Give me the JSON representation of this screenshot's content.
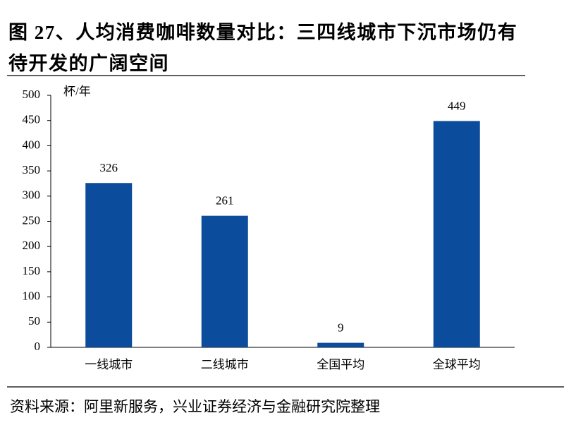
{
  "chart_data": {
    "type": "bar",
    "title": "图 27、人均消费咖啡数量对比：三四线城市下沉市场仍有待开发的广阔空间",
    "y_unit": "杯/年",
    "categories": [
      "一线城市",
      "二线城市",
      "全国平均",
      "全球平均"
    ],
    "values": [
      326,
      261,
      9,
      449
    ],
    "color": "#0b4c9c",
    "ylim": [
      0,
      500
    ],
    "yticks": [
      0,
      50,
      100,
      150,
      200,
      250,
      300,
      350,
      400,
      450,
      500
    ],
    "grid": false,
    "source": "资料来源：阿里新服务，兴业证券经济与金融研究院整理"
  }
}
